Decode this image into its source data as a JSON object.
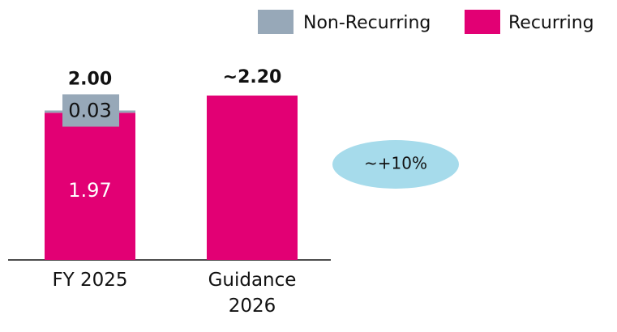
{
  "chart_data": {
    "type": "stacked_bar",
    "categories": [
      "FY 2025",
      "Guidance 2026"
    ],
    "series": [
      {
        "name": "Recurring",
        "color": "#e20074",
        "values": [
          1.97,
          2.2
        ],
        "value_labels": [
          "1.97",
          null
        ]
      },
      {
        "name": "Non-Recurring",
        "color": "#97a8b8",
        "values": [
          0.03,
          null
        ],
        "value_labels": [
          "0.03",
          null
        ]
      }
    ],
    "totals": [
      2.0,
      2.2
    ],
    "total_labels": [
      "2.00",
      "~2.20"
    ],
    "annotation": "~+10%",
    "legend": "top-right"
  }
}
